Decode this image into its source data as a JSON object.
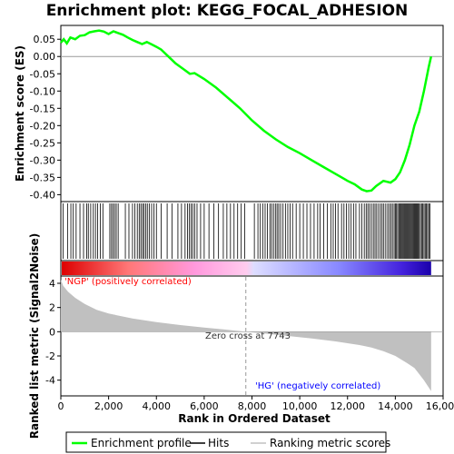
{
  "chart_data": {
    "type": "line",
    "title": "Enrichment plot: KEGG_FOCAL_ADHESION",
    "top_panel": {
      "ylabel": "Enrichment score (ES)",
      "ylim": [
        -0.42,
        0.09
      ],
      "yticks": [
        0.05,
        0.0,
        -0.05,
        -0.1,
        -0.15,
        -0.2,
        -0.25,
        -0.3,
        -0.35,
        -0.4
      ],
      "ytick_labels": [
        "0.05",
        "0.00",
        "-0.05",
        "-0.10",
        "-0.15",
        "-0.20",
        "-0.25",
        "-0.30",
        "-0.35",
        "-0.40"
      ],
      "series": [
        {
          "name": "Enrichment profile",
          "color": "#00ff00",
          "x": [
            0,
            120,
            250,
            400,
            600,
            800,
            1000,
            1200,
            1400,
            1600,
            1800,
            2000,
            2200,
            2400,
            2600,
            2800,
            3000,
            3200,
            3400,
            3600,
            3800,
            4000,
            4200,
            4500,
            4800,
            5100,
            5400,
            5600,
            6000,
            6500,
            7000,
            7500,
            8000,
            8500,
            9000,
            9500,
            10000,
            10500,
            11000,
            11500,
            12000,
            12300,
            12600,
            12800,
            13000,
            13200,
            13500,
            13800,
            14000,
            14200,
            14400,
            14600,
            14800,
            15000,
            15200,
            15400,
            15500
          ],
          "y": [
            0.04,
            0.05,
            0.038,
            0.055,
            0.05,
            0.06,
            0.062,
            0.07,
            0.073,
            0.075,
            0.072,
            0.065,
            0.073,
            0.068,
            0.063,
            0.055,
            0.048,
            0.042,
            0.036,
            0.042,
            0.035,
            0.028,
            0.02,
            0.0,
            -0.02,
            -0.035,
            -0.05,
            -0.048,
            -0.065,
            -0.09,
            -0.12,
            -0.15,
            -0.185,
            -0.215,
            -0.24,
            -0.262,
            -0.28,
            -0.3,
            -0.32,
            -0.34,
            -0.36,
            -0.37,
            -0.385,
            -0.39,
            -0.388,
            -0.375,
            -0.36,
            -0.365,
            -0.355,
            -0.335,
            -0.3,
            -0.255,
            -0.2,
            -0.16,
            -0.1,
            -0.03,
            0.0
          ]
        }
      ]
    },
    "hits": {
      "name": "Hits",
      "color": "#000000",
      "ranks": [
        100,
        280,
        420,
        520,
        640,
        800,
        950,
        1080,
        1150,
        1250,
        1360,
        1450,
        1540,
        1650,
        1760,
        2050,
        2120,
        2180,
        2250,
        2320,
        2400,
        2700,
        2850,
        3000,
        3100,
        3200,
        3280,
        3350,
        3420,
        3480,
        3550,
        3620,
        3700,
        3800,
        3900,
        4000,
        4200,
        4450,
        4650,
        4900,
        5050,
        5200,
        5300,
        5380,
        5450,
        5520,
        5600,
        5700,
        5850,
        6000,
        6200,
        6400,
        6600,
        6800,
        6950,
        7100,
        7250,
        7400,
        7550,
        7700,
        8100,
        8250,
        8350,
        8450,
        8550,
        8650,
        8750,
        8820,
        8900,
        8980,
        9050,
        9120,
        9200,
        9300,
        9400,
        9500,
        9600,
        9700,
        9850,
        10000,
        10150,
        10300,
        10450,
        10600,
        10750,
        10850,
        11000,
        11150,
        11300,
        11400,
        11500,
        11600,
        11750,
        11850,
        11950,
        12050,
        12150,
        12250,
        12350,
        12500,
        12600,
        12700,
        12780,
        12850,
        12920,
        13000,
        13080,
        13150,
        13220,
        13300,
        13380,
        13450,
        13520,
        13600,
        13680,
        13750,
        13820,
        13880,
        13950,
        14000,
        14050,
        14100,
        14150,
        14200,
        14240,
        14280,
        14320,
        14360,
        14400,
        14440,
        14480,
        14520,
        14560,
        14600,
        14640,
        14680,
        14720,
        14760,
        14800,
        14840,
        14880,
        14920,
        14960,
        15000,
        15050,
        15100,
        15150,
        15200,
        15250,
        15300,
        15350,
        15400,
        15450
      ]
    },
    "bottom_panel": {
      "ylabel": "Ranked list metric (Signal2Noise)",
      "xlabel": "Rank in Ordered Dataset",
      "ylim": [
        -5.3,
        4.6
      ],
      "yticks": [
        4,
        2,
        0,
        -2,
        -4
      ],
      "ytick_labels": [
        "4",
        "2",
        "0",
        "-2",
        "-4"
      ],
      "fill_color": "#c0c0c0",
      "series": [
        {
          "name": "Ranking metric scores",
          "x": [
            0,
            100,
            300,
            600,
            1000,
            1500,
            2000,
            3000,
            4000,
            5000,
            6000,
            7000,
            7743,
            8500,
            9500,
            10500,
            11500,
            12500,
            13000,
            13500,
            14000,
            14500,
            14800,
            15000,
            15200,
            15400,
            15500
          ],
          "y": [
            4.3,
            3.8,
            3.3,
            2.8,
            2.3,
            1.8,
            1.5,
            1.1,
            0.8,
            0.55,
            0.35,
            0.15,
            0.0,
            -0.15,
            -0.35,
            -0.55,
            -0.8,
            -1.1,
            -1.3,
            -1.6,
            -2.0,
            -2.6,
            -3.0,
            -3.5,
            -4.0,
            -4.6,
            -4.9
          ]
        }
      ]
    },
    "xlim": [
      0,
      16000
    ],
    "xticks": [
      0,
      2000,
      4000,
      6000,
      8000,
      10000,
      12000,
      14000,
      16000
    ],
    "xtick_labels": [
      "0",
      "2,000",
      "4,000",
      "6,000",
      "8,000",
      "10,000",
      "12,000",
      "14,000",
      "16,000"
    ],
    "annotations": {
      "positive": "'NGP' (positively correlated)",
      "negative": "'HG' (negatively correlated)",
      "zero_cross": "Zero cross at 7743",
      "zero_cross_rank": 7743
    },
    "legend": {
      "placement": "bottom",
      "items": [
        {
          "label": "Enrichment profile",
          "color": "#00ff00"
        },
        {
          "label": "Hits",
          "color": "#000000"
        },
        {
          "label": "Ranking metric scores",
          "color": "#c0c0c0"
        }
      ]
    },
    "colors": {
      "gradient": [
        "#dd0000",
        "#ff8888",
        "#ffbbee",
        "#ccccff",
        "#7777ff",
        "#2200cc"
      ],
      "zero_line": "#999999"
    }
  }
}
